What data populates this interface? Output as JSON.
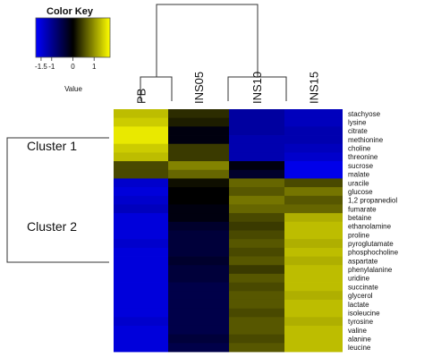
{
  "chart_data": {
    "type": "heatmap",
    "title": "",
    "color_key": {
      "title": "Color Key",
      "label": "Value",
      "ticks": [
        "-1.5",
        "-1",
        "0",
        "1"
      ],
      "tick_values": [
        -1.5,
        -1,
        0,
        1
      ],
      "range": [
        -1.75,
        1.75
      ],
      "colors": {
        "low": "#0000ff",
        "mid": "#000000",
        "high": "#ffff00"
      }
    },
    "columns": [
      "PB",
      "INS05",
      "INS10",
      "INS15"
    ],
    "rows": [
      "stachyose",
      "lysine",
      "citrate",
      "methionine",
      "choline",
      "threonine",
      "sucrose",
      "malate",
      "uracile",
      "glucose",
      "1,2 propanediol",
      "fumarate",
      "betaine",
      "ethanolamine",
      "proline",
      "pyroglutamate",
      "phosphocholine",
      "aspartate",
      "phenylalanine",
      "uridine",
      "succinate",
      "glycerol",
      "lactate",
      "isoleucine",
      "tyrosine",
      "valine",
      "alanine",
      "leucine"
    ],
    "clusters": [
      {
        "name": "Cluster 1",
        "first_row": 0,
        "last_row": 7
      },
      {
        "name": "Cluster 2",
        "first_row": 8,
        "last_row": 27
      }
    ],
    "values": [
      [
        1.3,
        0.3,
        -1.1,
        -1.3
      ],
      [
        1.4,
        0.2,
        -1.1,
        -1.3
      ],
      [
        1.6,
        -0.1,
        -1.1,
        -1.2
      ],
      [
        1.6,
        -0.1,
        -1.2,
        -1.2
      ],
      [
        1.4,
        0.4,
        -1.2,
        -1.3
      ],
      [
        1.3,
        0.4,
        -1.2,
        -1.4
      ],
      [
        0.5,
        0.9,
        -0.1,
        -1.6
      ],
      [
        0.5,
        0.7,
        -0.3,
        -1.6
      ],
      [
        -1.4,
        0.1,
        0.7,
        0.5
      ],
      [
        -1.5,
        0.0,
        0.6,
        0.8
      ],
      [
        -1.4,
        0.0,
        0.8,
        0.6
      ],
      [
        -1.3,
        -0.1,
        0.7,
        0.7
      ],
      [
        -1.5,
        -0.1,
        0.5,
        1.2
      ],
      [
        -1.5,
        -0.3,
        0.4,
        1.3
      ],
      [
        -1.5,
        -0.4,
        0.5,
        1.3
      ],
      [
        -1.4,
        -0.4,
        0.6,
        1.2
      ],
      [
        -1.5,
        -0.4,
        0.5,
        1.3
      ],
      [
        -1.5,
        -0.3,
        0.6,
        1.2
      ],
      [
        -1.5,
        -0.4,
        0.4,
        1.3
      ],
      [
        -1.5,
        -0.4,
        0.6,
        1.3
      ],
      [
        -1.5,
        -0.5,
        0.5,
        1.3
      ],
      [
        -1.5,
        -0.5,
        0.6,
        1.2
      ],
      [
        -1.5,
        -0.5,
        0.6,
        1.3
      ],
      [
        -1.5,
        -0.5,
        0.5,
        1.3
      ],
      [
        -1.4,
        -0.5,
        0.6,
        1.2
      ],
      [
        -1.5,
        -0.5,
        0.6,
        1.3
      ],
      [
        -1.5,
        -0.4,
        0.5,
        1.3
      ],
      [
        -1.5,
        -0.5,
        0.6,
        1.3
      ]
    ],
    "column_dendrogram": "((PB,INS05),(INS10,INS15))",
    "row_dendrogram": "(Cluster 1,Cluster 2)"
  }
}
